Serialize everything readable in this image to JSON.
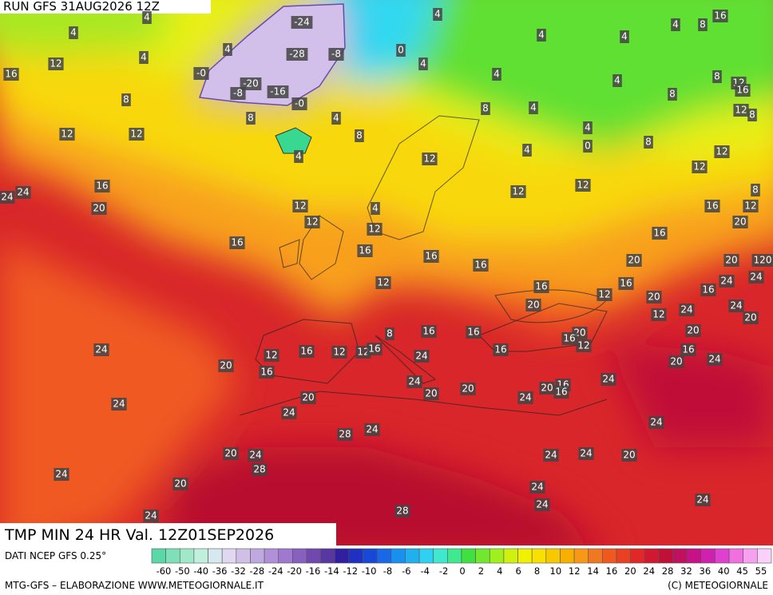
{
  "header": {
    "run": "RUN GFS 31AUG2026 12Z",
    "title": "TMP MIN 24 HR Val. 12Z01SEP2026"
  },
  "map": {
    "labels": [
      -24,
      -28,
      -8,
      {
        "value": 0,
        "label": "-0"
      },
      -20,
      -8,
      -16,
      {
        "value": 0,
        "label": "-0"
      },
      4,
      4,
      12,
      16,
      8,
      12,
      12,
      8,
      4,
      8,
      4,
      0,
      4,
      4,
      4,
      4,
      4,
      4,
      16,
      4,
      8,
      4,
      4,
      8,
      8,
      12,
      16,
      4,
      8,
      12,
      8,
      4,
      0,
      8,
      4,
      12,
      12,
      12,
      12,
      12,
      8,
      16,
      24,
      24,
      20,
      12,
      4,
      16,
      12,
      12,
      20,
      12,
      16,
      16,
      16,
      16,
      20,
      16,
      20,
      12,
      16,
      16,
      12,
      24,
      24,
      16,
      20,
      20,
      12,
      24,
      24,
      20,
      8,
      16,
      16,
      20,
      16,
      12,
      20,
      24,
      12,
      16,
      12,
      12,
      16,
      24,
      16,
      16,
      24,
      20,
      20,
      16,
      24,
      24,
      20,
      20,
      20,
      24,
      20,
      16,
      16,
      24,
      24,
      24,
      28,
      24,
      20,
      24,
      24,
      24,
      20,
      28,
      24,
      20,
      24,
      24,
      24,
      24,
      28,
      120
    ]
  },
  "colorbar": {
    "source": "DATI NCEP GFS 0.25°",
    "ticks": [
      -60,
      -50,
      -40,
      -36,
      -32,
      -28,
      -24,
      -20,
      -16,
      -14,
      -12,
      -10,
      -8,
      -6,
      -4,
      -2,
      0,
      2,
      4,
      6,
      8,
      10,
      12,
      14,
      16,
      20,
      24,
      28,
      32,
      36,
      40,
      45,
      55
    ],
    "colors": [
      "#5ad8a8",
      "#7de0b8",
      "#a0e8c8",
      "#c0f0dc",
      "#d8e8f0",
      "#e0d8f0",
      "#d0c0e8",
      "#c0a8e0",
      "#b090d8",
      "#a078d0",
      "#8860c0",
      "#7048b0",
      "#5838a0",
      "#3020a0",
      "#2030c0",
      "#1848d8",
      "#1868e8",
      "#1890f0",
      "#20b0f0",
      "#30d0f0",
      "#40e8d0",
      "#40e890",
      "#40e040",
      "#70e830",
      "#a0f020",
      "#d0f010",
      "#f0f000",
      "#f8e000",
      "#f8c800",
      "#f8b000",
      "#f89818",
      "#f07820",
      "#f05820",
      "#e84020",
      "#e02828",
      "#d01830",
      "#c01038",
      "#c01060",
      "#c81088",
      "#d020b0",
      "#e040d0",
      "#f070e0",
      "#f8a0f0",
      "#fcd0f8"
    ]
  },
  "footer": {
    "left": "MTG-GFS – ELABORAZIONE WWW.METEOGIORNALE.IT",
    "right": "(C) METEOGIORNALE"
  }
}
